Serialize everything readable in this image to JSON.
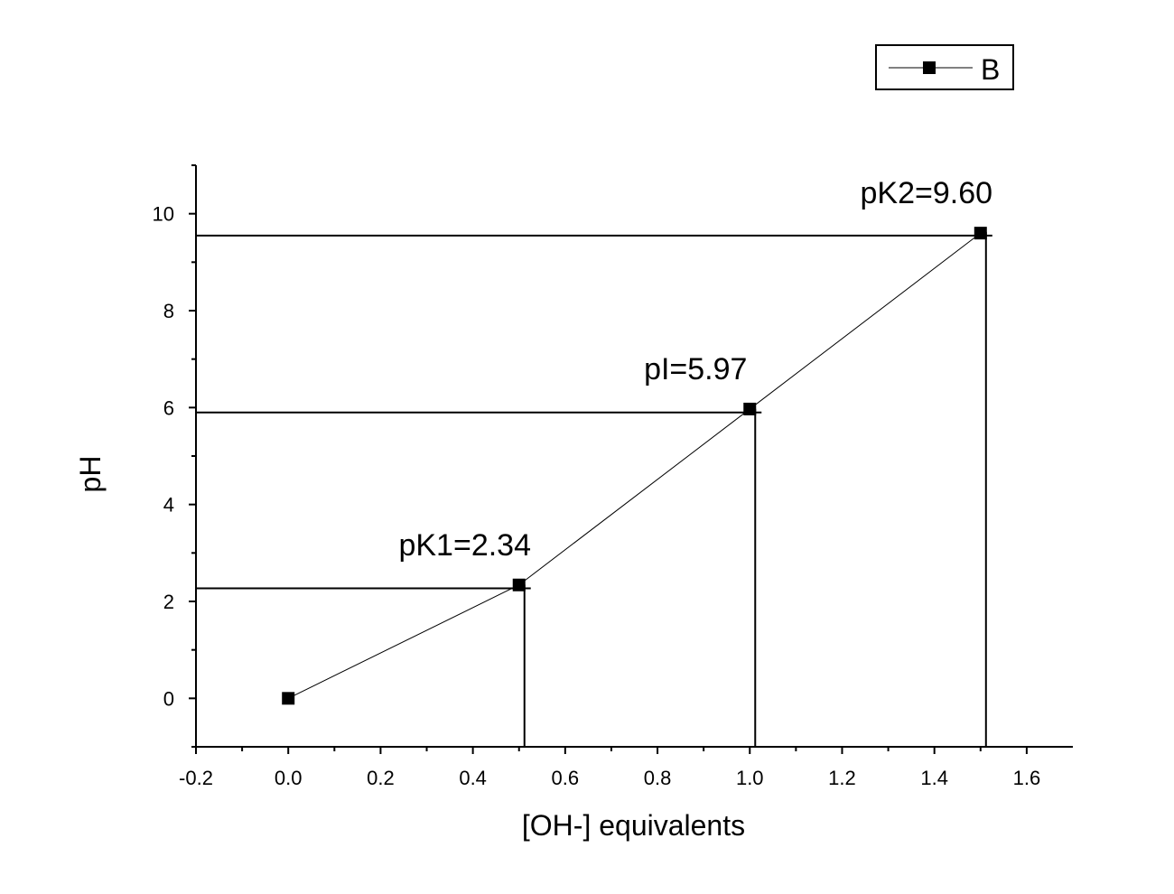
{
  "chart_data": {
    "type": "line",
    "title": "",
    "xlabel": "[OH-] equivalents",
    "ylabel": "pH",
    "xlim": [
      -0.2,
      1.7
    ],
    "ylim": [
      -1,
      11
    ],
    "xticks": [
      -0.2,
      0.0,
      0.2,
      0.4,
      0.6,
      0.8,
      1.0,
      1.2,
      1.4,
      1.6
    ],
    "xtick_labels": [
      "-0.2",
      "0.0",
      "0.2",
      "0.4",
      "0.6",
      "0.8",
      "1.0",
      "1.2",
      "1.4",
      "1.6"
    ],
    "yticks": [
      0,
      2,
      4,
      6,
      8,
      10
    ],
    "ytick_labels": [
      "0",
      "2",
      "4",
      "6",
      "8",
      "10"
    ],
    "grid": false,
    "legend_position": "top-right",
    "series": [
      {
        "name": "B",
        "x": [
          0.0,
          0.5,
          1.0,
          1.5
        ],
        "y": [
          0.0,
          2.34,
          5.97,
          9.6
        ],
        "marker": "square",
        "color": "#000000"
      }
    ],
    "reference_lines": [
      {
        "x": 0.5,
        "y": 2.27
      },
      {
        "x": 1.0,
        "y": 5.9
      },
      {
        "x": 1.5,
        "y": 9.55
      }
    ],
    "annotations": [
      {
        "text": "pK1=2.34",
        "x": 0.5,
        "y": 2.34
      },
      {
        "text": "pI=5.97",
        "x": 1.0,
        "y": 5.97
      },
      {
        "text": "pK2=9.60",
        "x": 1.5,
        "y": 9.6
      }
    ]
  }
}
